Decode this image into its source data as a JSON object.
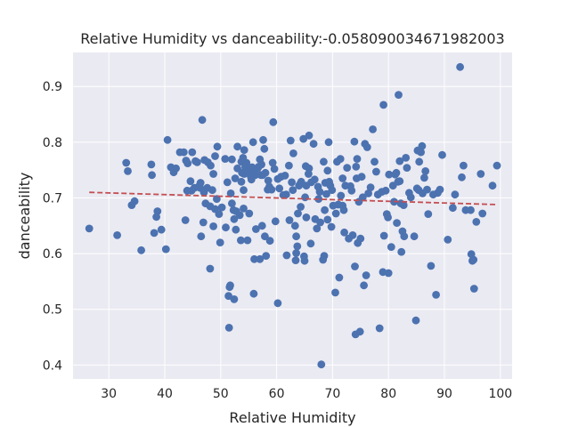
{
  "chart_data": {
    "type": "scatter",
    "title": "Relative Humidity vs danceability:-0.058090034671982003",
    "xlabel": "Relative Humidity",
    "ylabel": "danceability",
    "xlim": [
      23.6,
      102.1
    ],
    "ylim": [
      0.375,
      0.961
    ],
    "xticks": [
      30,
      40,
      50,
      60,
      70,
      80,
      90,
      100
    ],
    "yticks": [
      0.4,
      0.5,
      0.6,
      0.7,
      0.8,
      0.9
    ],
    "grid": true,
    "background_color": "#eaeaf2",
    "point_color": "#4c72b0",
    "trend_color": "#c44e52",
    "trend_style": "dashed",
    "trend_line": {
      "x": [
        26.5,
        99.5
      ],
      "y": [
        0.71,
        0.688
      ]
    },
    "points": [
      [
        26.5,
        0.645
      ],
      [
        31.5,
        0.633
      ],
      [
        33.1,
        0.763
      ],
      [
        33.4,
        0.748
      ],
      [
        34.1,
        0.687
      ],
      [
        34.6,
        0.694
      ],
      [
        35.8,
        0.606
      ],
      [
        37.6,
        0.76
      ],
      [
        37.7,
        0.741
      ],
      [
        38.1,
        0.637
      ],
      [
        38.5,
        0.666
      ],
      [
        38.7,
        0.676
      ],
      [
        39.4,
        0.643
      ],
      [
        40.2,
        0.608
      ],
      [
        40.5,
        0.804
      ],
      [
        41.1,
        0.755
      ],
      [
        41.6,
        0.746
      ],
      [
        42.0,
        0.753
      ],
      [
        42.7,
        0.782
      ],
      [
        43.4,
        0.782
      ],
      [
        43.7,
        0.66
      ],
      [
        43.8,
        0.767
      ],
      [
        44.0,
        0.713
      ],
      [
        44.1,
        0.762
      ],
      [
        44.6,
        0.73
      ],
      [
        44.8,
        0.713
      ],
      [
        44.9,
        0.782
      ],
      [
        45.3,
        0.718
      ],
      [
        45.5,
        0.766
      ],
      [
        45.8,
        0.764
      ],
      [
        46.2,
        0.722
      ],
      [
        46.3,
        0.718
      ],
      [
        46.4,
        0.727
      ],
      [
        46.5,
        0.631
      ],
      [
        46.7,
        0.84
      ],
      [
        46.9,
        0.656
      ],
      [
        47.0,
        0.71
      ],
      [
        47.1,
        0.768
      ],
      [
        47.3,
        0.69
      ],
      [
        47.6,
        0.718
      ],
      [
        47.7,
        0.764
      ],
      [
        48.1,
        0.573
      ],
      [
        48.1,
        0.685
      ],
      [
        48.2,
        0.758
      ],
      [
        48.5,
        0.714
      ],
      [
        48.7,
        0.649
      ],
      [
        48.7,
        0.743
      ],
      [
        49.0,
        0.68
      ],
      [
        49.0,
        0.775
      ],
      [
        49.3,
        0.698
      ],
      [
        49.4,
        0.792
      ],
      [
        49.7,
        0.671
      ],
      [
        49.9,
        0.62
      ],
      [
        50.2,
        0.683
      ],
      [
        50.8,
        0.77
      ],
      [
        50.9,
        0.647
      ],
      [
        51.2,
        0.728
      ],
      [
        51.4,
        0.524
      ],
      [
        51.5,
        0.467
      ],
      [
        51.6,
        0.54
      ],
      [
        51.7,
        0.543
      ],
      [
        51.8,
        0.708
      ],
      [
        52.0,
        0.769
      ],
      [
        52.0,
        0.69
      ],
      [
        52.3,
        0.678
      ],
      [
        52.4,
        0.662
      ],
      [
        52.4,
        0.518
      ],
      [
        52.6,
        0.735
      ],
      [
        52.7,
        0.643
      ],
      [
        52.8,
        0.676
      ],
      [
        53.0,
        0.753
      ],
      [
        53.0,
        0.792
      ],
      [
        53.4,
        0.669
      ],
      [
        53.6,
        0.624
      ],
      [
        53.7,
        0.729
      ],
      [
        53.7,
        0.765
      ],
      [
        53.8,
        0.745
      ],
      [
        54.0,
        0.772
      ],
      [
        54.1,
        0.681
      ],
      [
        54.1,
        0.714
      ],
      [
        54.2,
        0.786
      ],
      [
        54.2,
        0.743
      ],
      [
        54.4,
        0.755
      ],
      [
        54.6,
        0.763
      ],
      [
        54.8,
        0.624
      ],
      [
        55.0,
        0.748
      ],
      [
        55.1,
        0.672
      ],
      [
        55.4,
        0.738
      ],
      [
        55.5,
        0.733
      ],
      [
        55.6,
        0.755
      ],
      [
        55.7,
        0.744
      ],
      [
        55.8,
        0.8
      ],
      [
        55.9,
        0.528
      ],
      [
        56.0,
        0.59
      ],
      [
        56.2,
        0.741
      ],
      [
        56.3,
        0.644
      ],
      [
        56.6,
        0.753
      ],
      [
        56.8,
        0.756
      ],
      [
        57.0,
        0.59
      ],
      [
        57.0,
        0.769
      ],
      [
        57.2,
        0.741
      ],
      [
        57.3,
        0.76
      ],
      [
        57.4,
        0.65
      ],
      [
        57.5,
        0.741
      ],
      [
        57.6,
        0.804
      ],
      [
        57.8,
        0.788
      ],
      [
        57.9,
        0.631
      ],
      [
        58.0,
        0.745
      ],
      [
        58.1,
        0.596
      ],
      [
        58.4,
        0.715
      ],
      [
        58.5,
        0.731
      ],
      [
        58.7,
        0.72
      ],
      [
        58.8,
        0.623
      ],
      [
        59.1,
        0.715
      ],
      [
        59.3,
        0.763
      ],
      [
        59.4,
        0.836
      ],
      [
        59.6,
        0.752
      ],
      [
        59.8,
        0.658
      ],
      [
        60.2,
        0.511
      ],
      [
        60.2,
        0.734
      ],
      [
        60.5,
        0.717
      ],
      [
        60.8,
        0.738
      ],
      [
        61.2,
        0.705
      ],
      [
        61.5,
        0.74
      ],
      [
        61.7,
        0.706
      ],
      [
        61.8,
        0.597
      ],
      [
        62.2,
        0.758
      ],
      [
        62.3,
        0.66
      ],
      [
        62.5,
        0.803
      ],
      [
        62.7,
        0.728
      ],
      [
        62.9,
        0.714
      ],
      [
        63.0,
        0.78
      ],
      [
        63.3,
        0.65
      ],
      [
        63.4,
        0.588
      ],
      [
        63.5,
        0.601
      ],
      [
        63.5,
        0.631
      ],
      [
        63.7,
        0.613
      ],
      [
        63.8,
        0.672
      ],
      [
        64.0,
        0.722
      ],
      [
        64.2,
        0.725
      ],
      [
        64.3,
        0.684
      ],
      [
        64.4,
        0.729
      ],
      [
        64.8,
        0.806
      ],
      [
        64.9,
        0.595
      ],
      [
        65.0,
        0.587
      ],
      [
        65.1,
        0.701
      ],
      [
        65.2,
        0.757
      ],
      [
        65.3,
        0.665
      ],
      [
        65.3,
        0.722
      ],
      [
        65.7,
        0.743
      ],
      [
        65.8,
        0.753
      ],
      [
        65.8,
        0.812
      ],
      [
        66.1,
        0.618
      ],
      [
        66.2,
        0.728
      ],
      [
        66.6,
        0.797
      ],
      [
        66.8,
        0.733
      ],
      [
        66.9,
        0.662
      ],
      [
        67.2,
        0.645
      ],
      [
        67.4,
        0.72
      ],
      [
        67.5,
        0.698
      ],
      [
        67.7,
        0.711
      ],
      [
        67.8,
        0.656
      ],
      [
        68.0,
        0.401
      ],
      [
        68.3,
        0.589
      ],
      [
        68.4,
        0.765
      ],
      [
        68.5,
        0.596
      ],
      [
        68.6,
        0.678
      ],
      [
        68.7,
        0.727
      ],
      [
        68.9,
        0.707
      ],
      [
        69.1,
        0.749
      ],
      [
        69.1,
        0.661
      ],
      [
        69.3,
        0.8
      ],
      [
        69.4,
        0.729
      ],
      [
        69.6,
        0.722
      ],
      [
        69.8,
        0.648
      ],
      [
        69.9,
        0.714
      ],
      [
        70.1,
        0.686
      ],
      [
        70.5,
        0.53
      ],
      [
        70.6,
        0.672
      ],
      [
        70.8,
        0.765
      ],
      [
        71.0,
        0.688
      ],
      [
        71.2,
        0.557
      ],
      [
        71.4,
        0.77
      ],
      [
        71.5,
        0.704
      ],
      [
        71.8,
        0.735
      ],
      [
        71.8,
        0.686
      ],
      [
        72.0,
        0.678
      ],
      [
        72.1,
        0.638
      ],
      [
        72.3,
        0.722
      ],
      [
        72.6,
        0.754
      ],
      [
        72.9,
        0.627
      ],
      [
        73.2,
        0.721
      ],
      [
        73.4,
        0.713
      ],
      [
        73.6,
        0.633
      ],
      [
        73.9,
        0.801
      ],
      [
        74.0,
        0.577
      ],
      [
        74.1,
        0.455
      ],
      [
        74.2,
        0.756
      ],
      [
        74.3,
        0.735
      ],
      [
        74.4,
        0.77
      ],
      [
        74.5,
        0.619
      ],
      [
        74.7,
        0.693
      ],
      [
        74.9,
        0.46
      ],
      [
        75.0,
        0.627
      ],
      [
        75.2,
        0.738
      ],
      [
        75.4,
        0.701
      ],
      [
        75.6,
        0.543
      ],
      [
        75.8,
        0.797
      ],
      [
        76.0,
        0.561
      ],
      [
        76.2,
        0.791
      ],
      [
        76.4,
        0.708
      ],
      [
        76.8,
        0.719
      ],
      [
        77.2,
        0.823
      ],
      [
        77.5,
        0.765
      ],
      [
        77.8,
        0.747
      ],
      [
        78.1,
        0.706
      ],
      [
        78.4,
        0.466
      ],
      [
        78.8,
        0.711
      ],
      [
        79.0,
        0.567
      ],
      [
        79.1,
        0.867
      ],
      [
        79.2,
        0.632
      ],
      [
        79.5,
        0.713
      ],
      [
        79.7,
        0.671
      ],
      [
        79.9,
        0.665
      ],
      [
        80.0,
        0.565
      ],
      [
        80.1,
        0.742
      ],
      [
        80.5,
        0.612
      ],
      [
        80.8,
        0.722
      ],
      [
        81.0,
        0.693
      ],
      [
        81.2,
        0.742
      ],
      [
        81.4,
        0.745
      ],
      [
        81.5,
        0.655
      ],
      [
        81.7,
        0.729
      ],
      [
        81.8,
        0.885
      ],
      [
        82.0,
        0.73
      ],
      [
        82.0,
        0.766
      ],
      [
        82.2,
        0.69
      ],
      [
        82.3,
        0.603
      ],
      [
        82.5,
        0.64
      ],
      [
        82.7,
        0.687
      ],
      [
        82.8,
        0.631
      ],
      [
        83.1,
        0.772
      ],
      [
        83.3,
        0.754
      ],
      [
        83.7,
        0.709
      ],
      [
        84.0,
        0.701
      ],
      [
        84.6,
        0.631
      ],
      [
        84.9,
        0.48
      ],
      [
        85.1,
        0.717
      ],
      [
        85.2,
        0.785
      ],
      [
        85.4,
        0.714
      ],
      [
        85.5,
        0.765
      ],
      [
        85.8,
        0.782
      ],
      [
        86.0,
        0.793
      ],
      [
        86.1,
        0.708
      ],
      [
        86.4,
        0.736
      ],
      [
        86.6,
        0.748
      ],
      [
        86.9,
        0.715
      ],
      [
        87.1,
        0.671
      ],
      [
        87.6,
        0.578
      ],
      [
        88.0,
        0.706
      ],
      [
        88.5,
        0.526
      ],
      [
        88.8,
        0.709
      ],
      [
        89.2,
        0.715
      ],
      [
        89.6,
        0.777
      ],
      [
        90.6,
        0.625
      ],
      [
        91.5,
        0.682
      ],
      [
        91.9,
        0.706
      ],
      [
        92.8,
        0.935
      ],
      [
        93.1,
        0.737
      ],
      [
        93.4,
        0.758
      ],
      [
        93.8,
        0.678
      ],
      [
        94.7,
        0.678
      ],
      [
        94.8,
        0.599
      ],
      [
        95.0,
        0.587
      ],
      [
        95.2,
        0.589
      ],
      [
        95.3,
        0.537
      ],
      [
        95.7,
        0.657
      ],
      [
        96.5,
        0.743
      ],
      [
        96.8,
        0.672
      ],
      [
        98.6,
        0.722
      ],
      [
        99.4,
        0.758
      ]
    ]
  }
}
